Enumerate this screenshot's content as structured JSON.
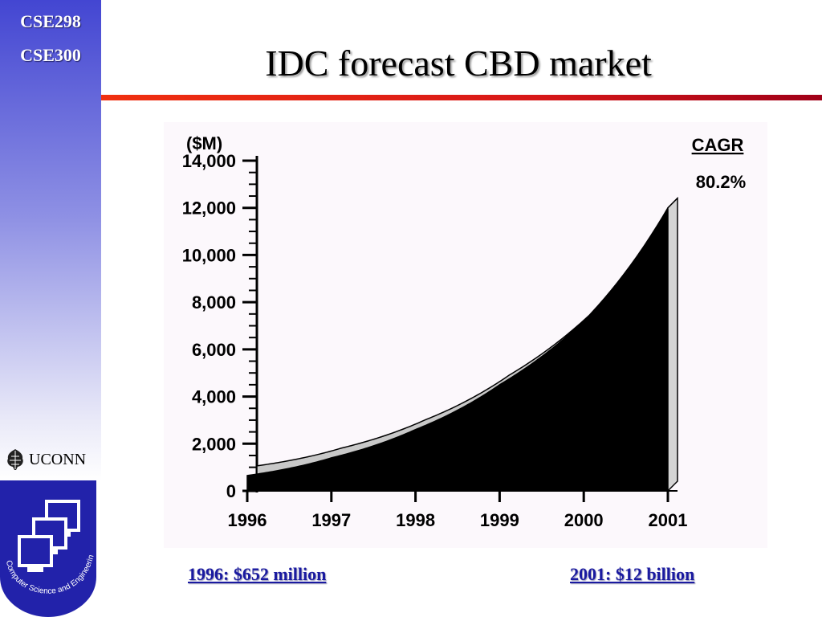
{
  "sidebar": {
    "course_line_1": "CSE298",
    "course_line_2": "CSE300",
    "university": "UCONN",
    "dept_seal_text": "Computer Science and Engineering"
  },
  "slide": {
    "title": "IDC forecast CBD market"
  },
  "chart_data": {
    "type": "area",
    "title": "",
    "ylabel": "($M)",
    "xlabel": "",
    "x": [
      "1996",
      "1997",
      "1998",
      "1999",
      "2000",
      "2001"
    ],
    "y_ticks": [
      "0",
      "2,000",
      "4,000",
      "6,000",
      "8,000",
      "10,000",
      "12,000",
      "14,000"
    ],
    "ylim": [
      0,
      14000
    ],
    "series": [
      {
        "values": [
          652,
          1400,
          2600,
          4500,
          7200,
          12000
        ]
      }
    ],
    "legend": {
      "heading": "CAGR",
      "value": "80.2%"
    },
    "grid": false
  },
  "captions": {
    "left": "1996: $652 million",
    "right": "2001: $12 billion"
  },
  "colors": {
    "sidebar_top": "#4346d2",
    "divider": "#e02010",
    "caption": "#1a1aa0",
    "area": "#000000"
  }
}
